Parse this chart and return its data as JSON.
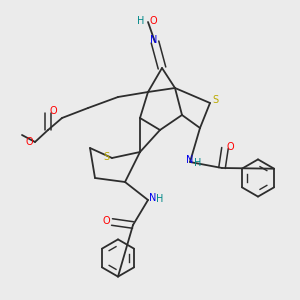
{
  "bg_color": "#ebebeb",
  "bond_color": "#2d2d2d",
  "colors": {
    "N": "#0000ee",
    "O": "#ff0000",
    "S": "#bbaa00",
    "H": "#008888",
    "C": "#2d2d2d"
  }
}
